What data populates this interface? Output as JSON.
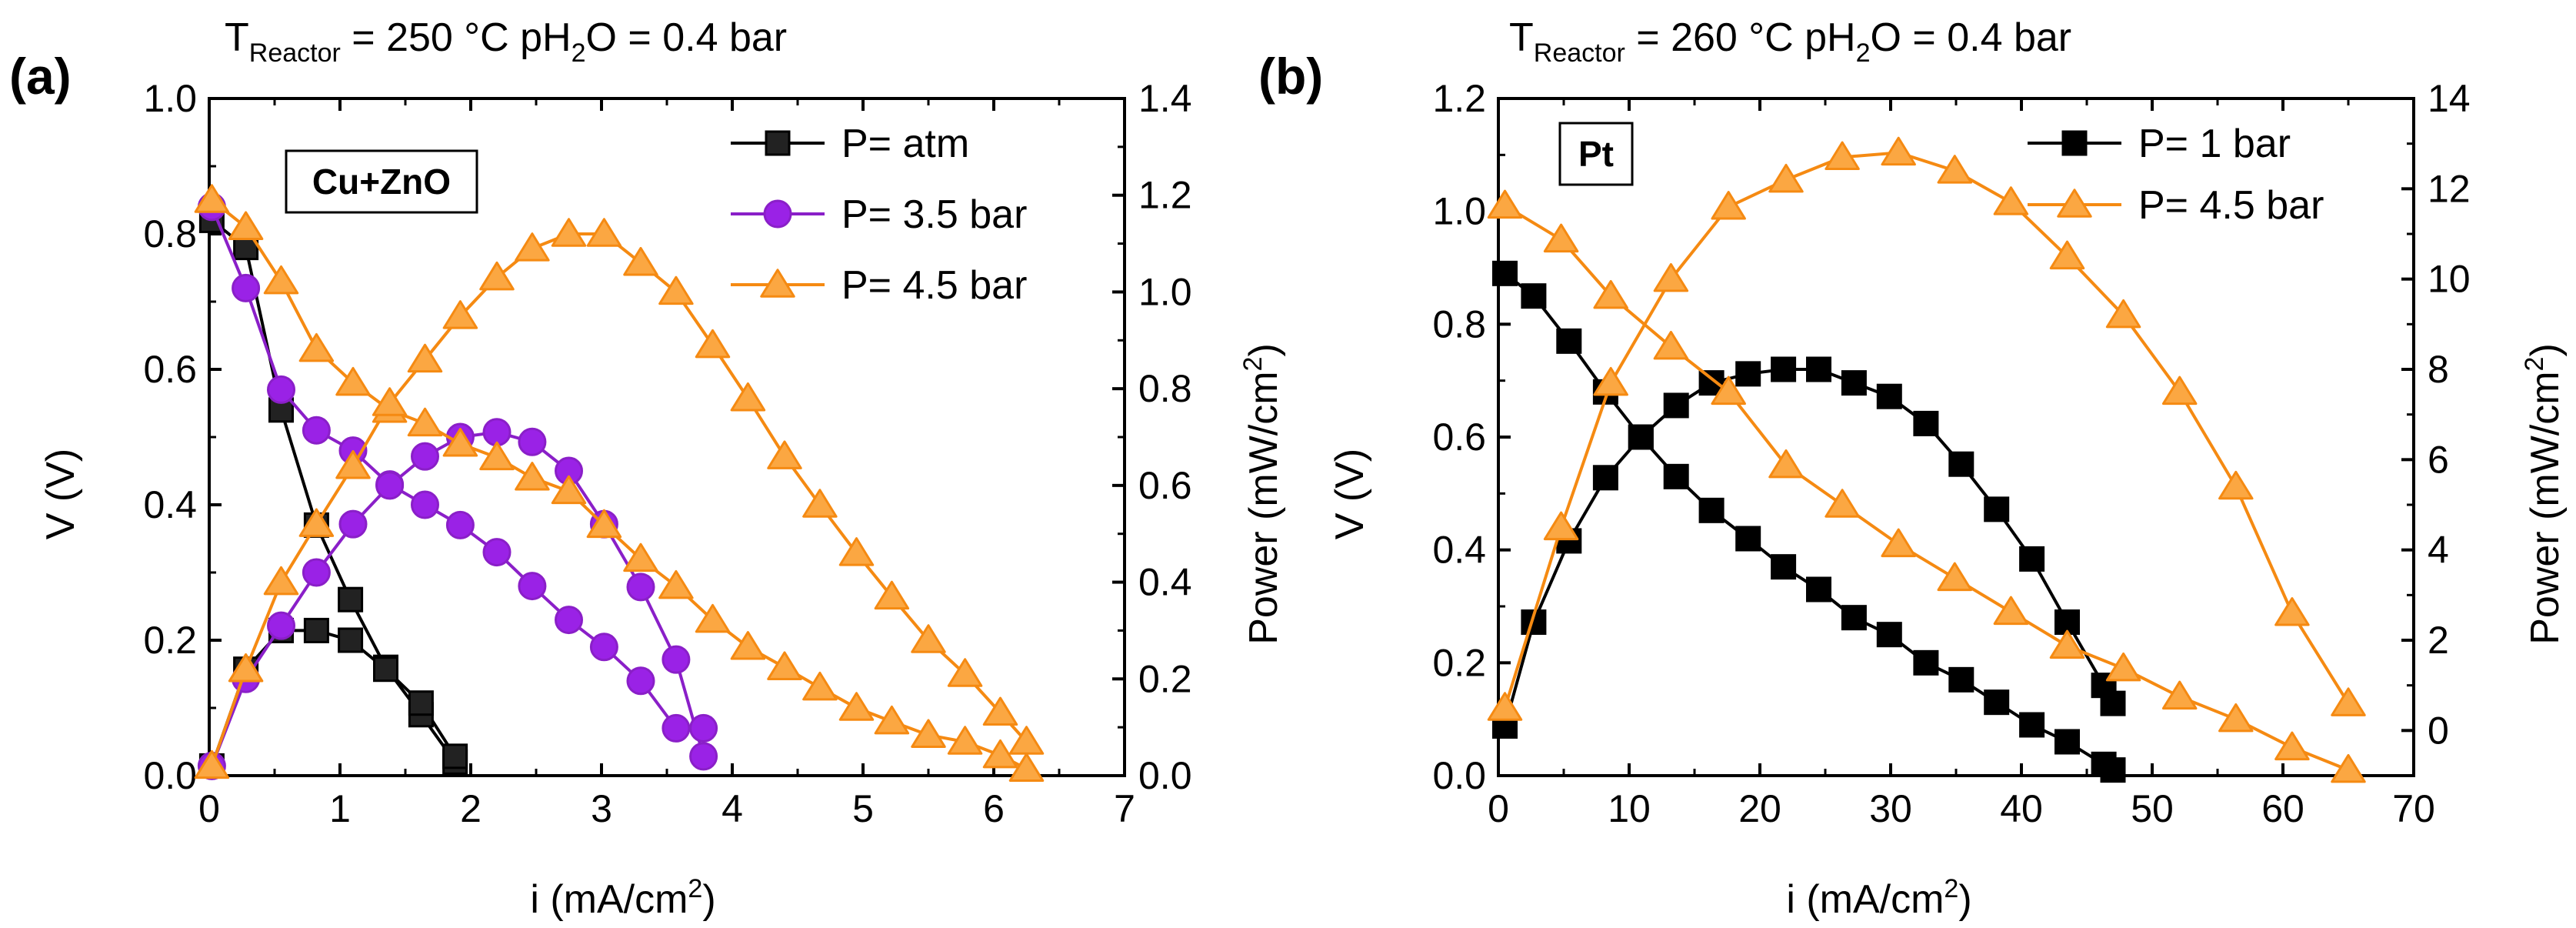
{
  "chart_data": [
    {
      "type": "line",
      "panel_label": "(a)",
      "title": {
        "t_symbol": "T",
        "t_sub": "Reactor",
        "t_rest": " = 250 °C pH",
        "h2o_sub": "2",
        "tail": "O = 0.4 bar"
      },
      "annotation": "Cu+ZnO",
      "xlabel": {
        "main": "i (mA/cm",
        "sup": "2",
        "tail": ")"
      },
      "ylabel": "V (V)",
      "y2label": {
        "main": "Power (mW/cm",
        "sup": "2",
        "tail": ")"
      },
      "xlim": [
        0,
        7
      ],
      "ylim": [
        0,
        1.0
      ],
      "y2lim": [
        0,
        1.4
      ],
      "xticks": [
        "0",
        "1",
        "2",
        "3",
        "4",
        "5",
        "6",
        "7"
      ],
      "yticks": [
        "0.0",
        "0.2",
        "0.4",
        "0.6",
        "0.8",
        "1.0"
      ],
      "y2ticks": [
        "0.0",
        "0.2",
        "0.4",
        "0.6",
        "0.8",
        "1.0",
        "1.2",
        "1.4"
      ],
      "series": [
        {
          "name": "P= atm",
          "color": "#000000",
          "fill": "#222222",
          "marker": "square",
          "x": [
            0.02,
            0.28,
            0.55,
            0.82,
            1.08,
            1.35,
            1.62,
            1.88
          ],
          "v": [
            0.82,
            0.78,
            0.54,
            0.37,
            0.26,
            0.16,
            0.09,
            0.02
          ],
          "p": [
            0.02,
            0.22,
            0.3,
            0.3,
            0.28,
            0.22,
            0.15,
            0.04
          ]
        },
        {
          "name": "P= 3.5 bar",
          "color": "#8a1fc8",
          "fill": "#9a22e6",
          "marker": "circle",
          "x": [
            0.02,
            0.28,
            0.55,
            0.82,
            1.1,
            1.38,
            1.65,
            1.92,
            2.2,
            2.47,
            2.75,
            3.02,
            3.3,
            3.57,
            3.78
          ],
          "v": [
            0.84,
            0.72,
            0.57,
            0.51,
            0.48,
            0.43,
            0.4,
            0.37,
            0.33,
            0.28,
            0.23,
            0.19,
            0.14,
            0.07,
            0.07
          ],
          "p": [
            0.02,
            0.2,
            0.31,
            0.42,
            0.52,
            0.6,
            0.66,
            0.7,
            0.71,
            0.69,
            0.63,
            0.52,
            0.39,
            0.24,
            0.04
          ]
        },
        {
          "name": "P= 4.5 bar",
          "color": "#f58a12",
          "fill": "#fba742",
          "marker": "triangle",
          "x": [
            0.02,
            0.28,
            0.55,
            0.82,
            1.1,
            1.38,
            1.65,
            1.92,
            2.2,
            2.47,
            2.75,
            3.02,
            3.3,
            3.57,
            3.85,
            4.12,
            4.4,
            4.67,
            4.95,
            5.22,
            5.5,
            5.78,
            6.05,
            6.25
          ],
          "v": [
            0.85,
            0.81,
            0.73,
            0.63,
            0.58,
            0.54,
            0.52,
            0.49,
            0.47,
            0.44,
            0.42,
            0.37,
            0.32,
            0.28,
            0.23,
            0.19,
            0.16,
            0.13,
            0.1,
            0.08,
            0.06,
            0.05,
            0.03,
            0.01
          ],
          "p": [
            0.02,
            0.22,
            0.4,
            0.52,
            0.64,
            0.77,
            0.86,
            0.95,
            1.03,
            1.09,
            1.12,
            1.12,
            1.06,
            1.0,
            0.89,
            0.78,
            0.66,
            0.56,
            0.46,
            0.37,
            0.28,
            0.21,
            0.13,
            0.07
          ]
        }
      ]
    },
    {
      "type": "line",
      "panel_label": "(b)",
      "title": {
        "t_symbol": "T",
        "t_sub": "Reactor",
        "t_rest": " = 260 °C  pH",
        "h2o_sub": "2",
        "tail": "O = 0.4 bar"
      },
      "annotation": "Pt",
      "xlabel": {
        "main": "i (mA/cm",
        "sup": "2",
        "tail": ")"
      },
      "ylabel": "V (V)",
      "y2label": {
        "main": "Power (mW/cm",
        "sup": "2",
        "tail": ")"
      },
      "xlim": [
        0,
        70
      ],
      "ylim": [
        0,
        1.2
      ],
      "y2lim": [
        -1,
        14
      ],
      "xticks": [
        "0",
        "10",
        "20",
        "30",
        "40",
        "50",
        "60",
        "70"
      ],
      "yticks": [
        "0.0",
        "0.2",
        "0.4",
        "0.6",
        "0.8",
        "1.0",
        "1.2"
      ],
      "y2ticks": [
        "0",
        "2",
        "4",
        "6",
        "8",
        "10",
        "12",
        "14"
      ],
      "series": [
        {
          "name": "P= 1 bar",
          "color": "#000000",
          "fill": "#000000",
          "marker": "square",
          "x": [
            0.5,
            2.7,
            5.4,
            8.2,
            10.9,
            13.6,
            16.3,
            19.1,
            21.8,
            24.5,
            27.2,
            29.9,
            32.7,
            35.4,
            38.1,
            40.8,
            43.5,
            46.3,
            47.0
          ],
          "v": [
            0.89,
            0.85,
            0.77,
            0.68,
            0.6,
            0.53,
            0.47,
            0.42,
            0.37,
            0.33,
            0.28,
            0.25,
            0.2,
            0.17,
            0.13,
            0.09,
            0.06,
            0.02,
            0.01
          ],
          "p": [
            0.1,
            2.4,
            4.2,
            5.6,
            6.5,
            7.2,
            7.7,
            7.9,
            8.0,
            8.0,
            7.7,
            7.4,
            6.8,
            5.9,
            4.9,
            3.8,
            2.4,
            1.0,
            0.6
          ]
        },
        {
          "name": "P= 4.5 bar",
          "color": "#f58a12",
          "fill": "#fba742",
          "marker": "triangle",
          "x": [
            0.5,
            4.8,
            8.6,
            13.2,
            17.6,
            22.0,
            26.3,
            30.6,
            34.9,
            39.2,
            43.5,
            47.8,
            52.1,
            56.4,
            60.7,
            65.0
          ],
          "v": [
            1.01,
            0.95,
            0.85,
            0.76,
            0.68,
            0.55,
            0.48,
            0.41,
            0.35,
            0.29,
            0.23,
            0.19,
            0.14,
            0.1,
            0.05,
            0.01
          ],
          "p": [
            0.5,
            4.5,
            7.7,
            10.0,
            11.6,
            12.2,
            12.7,
            12.8,
            12.4,
            11.7,
            10.5,
            9.2,
            7.5,
            5.4,
            2.6,
            0.6
          ]
        }
      ]
    }
  ]
}
